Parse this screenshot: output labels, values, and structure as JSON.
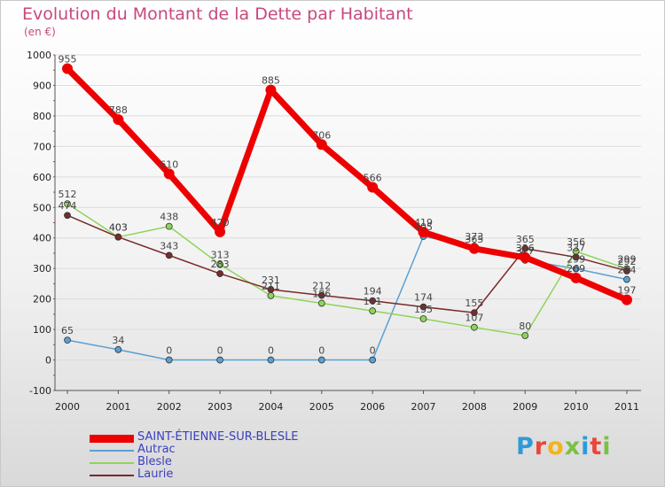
{
  "title": "Evolution du Montant de la Dette par Habitant",
  "subtitle": "(en €)",
  "logo": {
    "text": "Proxiti",
    "colors": [
      "#2f9ad8",
      "#e8473a",
      "#f3b31a",
      "#7ac143",
      "#2f9ad8",
      "#e8473a",
      "#7ac143"
    ]
  },
  "chart_data": {
    "type": "line",
    "categories": [
      "2000",
      "2001",
      "2002",
      "2003",
      "2004",
      "2005",
      "2006",
      "2007",
      "2008",
      "2009",
      "2010",
      "2011"
    ],
    "ylim": [
      -100,
      1000
    ],
    "yticks": [
      "-100",
      "0",
      "100",
      "200",
      "300",
      "400",
      "500",
      "600",
      "700",
      "800",
      "900",
      "1000"
    ],
    "ytick_values": [
      -100,
      0,
      100,
      200,
      300,
      400,
      500,
      600,
      700,
      800,
      900,
      1000
    ],
    "legend_position": "bottom-left",
    "series": [
      {
        "name": "SAINT-ÉTIENNE-SUR-BLESLE",
        "color": "#ee0000",
        "emphasis": true,
        "values": [
          955,
          788,
          610,
          420,
          885,
          706,
          566,
          419,
          365,
          336,
          269,
          197
        ],
        "labels": [
          "955",
          "788",
          "610",
          "420",
          "885",
          "706",
          "566",
          "419",
          "365",
          "336",
          "269",
          "197"
        ]
      },
      {
        "name": "Autrac",
        "color": "#5aa0d2",
        "values": [
          65,
          34,
          0,
          0,
          0,
          0,
          0,
          405,
          373,
          327,
          299,
          264
        ],
        "labels": [
          "65",
          "34",
          "0",
          "0",
          "0",
          "0",
          "0",
          "405",
          "373",
          "327",
          "299",
          "264"
        ]
      },
      {
        "name": "Blesle",
        "color": "#8fd45a",
        "values": [
          512,
          403,
          438,
          313,
          211,
          186,
          161,
          135,
          107,
          80,
          356,
          299
        ],
        "labels": [
          "512",
          "403",
          "438",
          "313",
          "211",
          "186",
          "161",
          "135",
          "107",
          "80",
          "356",
          "299"
        ]
      },
      {
        "name": "Laurie",
        "color": "#7a2a2a",
        "values": [
          474,
          403,
          343,
          283,
          231,
          212,
          194,
          174,
          155,
          365,
          337,
          292
        ],
        "labels": [
          "474",
          "403",
          "343",
          "283",
          "231",
          "212",
          "194",
          "174",
          "155",
          "365",
          "337",
          "292"
        ]
      }
    ]
  }
}
